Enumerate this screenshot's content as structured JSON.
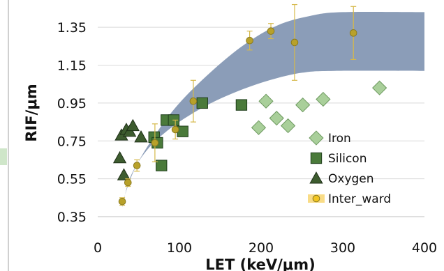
{
  "chart_data": {
    "type": "scatter",
    "xlabel": "LET (keV/μm)",
    "ylabel": "RIF/μm",
    "xlim": [
      0,
      400
    ],
    "ylim": [
      0.35,
      1.45
    ],
    "x_ticks": [
      "0",
      "100",
      "200",
      "300",
      "400"
    ],
    "y_ticks": [
      "0.35",
      "0.55",
      "0.75",
      "0.95",
      "1.15",
      "1.35"
    ],
    "grid": "horizontal",
    "legend_position": "bottom-right",
    "band": {
      "lower": [
        [
          30,
          0.4
        ],
        [
          40,
          0.56
        ],
        [
          60,
          0.7
        ],
        [
          90,
          0.82
        ],
        [
          130,
          0.93
        ],
        [
          170,
          1.01
        ],
        [
          210,
          1.07
        ],
        [
          250,
          1.11
        ],
        [
          290,
          1.12
        ],
        [
          400,
          1.12
        ]
      ],
      "upper": [
        [
          30,
          0.42
        ],
        [
          45,
          0.6
        ],
        [
          70,
          0.78
        ],
        [
          100,
          0.95
        ],
        [
          140,
          1.12
        ],
        [
          180,
          1.26
        ],
        [
          220,
          1.36
        ],
        [
          260,
          1.41
        ],
        [
          300,
          1.43
        ],
        [
          400,
          1.43
        ]
      ],
      "color": "#8b9db8"
    },
    "series": [
      {
        "name": "Iron",
        "marker": "diamond",
        "color": "#a9cf9a",
        "edge": "#6e9a60",
        "points": [
          [
            197,
            0.82
          ],
          [
            206,
            0.96
          ],
          [
            219,
            0.87
          ],
          [
            233,
            0.83
          ],
          [
            251,
            0.94
          ],
          [
            276,
            0.97
          ],
          [
            345,
            1.03
          ]
        ]
      },
      {
        "name": "Silicon",
        "marker": "square",
        "color": "#4a7a3a",
        "edge": "#1e3d1a",
        "points": [
          [
            69,
            0.77
          ],
          [
            73,
            0.74
          ],
          [
            78,
            0.62
          ],
          [
            84,
            0.86
          ],
          [
            93,
            0.86
          ],
          [
            104,
            0.8
          ],
          [
            128,
            0.95
          ],
          [
            176,
            0.94
          ]
        ]
      },
      {
        "name": "Oxygen",
        "marker": "triangle",
        "color": "#3d5c2f",
        "edge": "#1d2e16",
        "points": [
          [
            27,
            0.66
          ],
          [
            29,
            0.78
          ],
          [
            32,
            0.57
          ],
          [
            35,
            0.81
          ],
          [
            39,
            0.8
          ],
          [
            43,
            0.83
          ],
          [
            53,
            0.77
          ]
        ]
      },
      {
        "name": "Inter_ward",
        "marker": "circle",
        "color": "#b8a12a",
        "edge": "#8a7a1f",
        "legend_color": "#f2c522",
        "points": [
          {
            "x": 30,
            "y": 0.43,
            "err": 0.02
          },
          {
            "x": 37,
            "y": 0.53,
            "err": 0.02
          },
          {
            "x": 48,
            "y": 0.62,
            "err": 0.03
          },
          {
            "x": 70,
            "y": 0.74,
            "err": 0.1
          },
          {
            "x": 95,
            "y": 0.81,
            "err": 0.05
          },
          {
            "x": 117,
            "y": 0.96,
            "err": 0.11
          },
          {
            "x": 186,
            "y": 1.28,
            "err": 0.05
          },
          {
            "x": 212,
            "y": 1.33,
            "err": 0.04
          },
          {
            "x": 241,
            "y": 1.27,
            "err": 0.2
          },
          {
            "x": 313,
            "y": 1.32,
            "err": 0.14
          }
        ]
      }
    ]
  }
}
